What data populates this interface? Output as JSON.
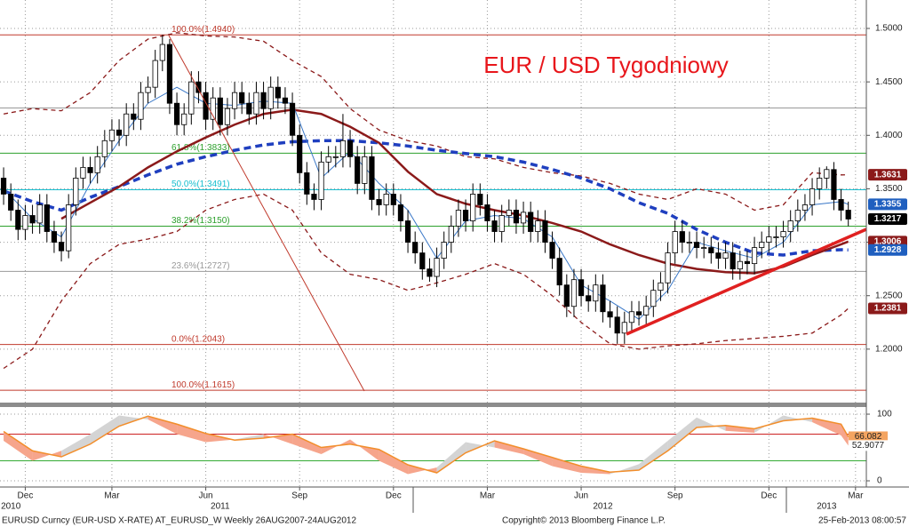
{
  "chart_data": [
    {
      "type": "candlestick",
      "title": "EUR / USD Tygodniowy",
      "categories": [
        null,
        null,
        null,
        "Dec",
        null,
        null,
        null,
        null,
        null,
        null,
        null,
        null,
        null,
        null,
        null,
        "Mar",
        null,
        null,
        null,
        null,
        null,
        null,
        null,
        null,
        null,
        null,
        null,
        null,
        "Jun",
        null,
        null,
        null,
        null,
        null,
        null,
        null,
        null,
        null,
        null,
        null,
        null,
        "Sep",
        null,
        null,
        null,
        null,
        null,
        null,
        null,
        null,
        null,
        null,
        null,
        null,
        "Dec",
        null,
        null,
        null,
        null,
        null,
        null,
        null,
        null,
        null,
        null,
        null,
        null,
        "Mar",
        null,
        null,
        null,
        null,
        null,
        null,
        null,
        null,
        null,
        null,
        null,
        null,
        "Jun",
        null,
        null,
        null,
        null,
        null,
        null,
        null,
        null,
        null,
        null,
        null,
        null,
        "Sep",
        null,
        null,
        null,
        null,
        null,
        null,
        null,
        null,
        null,
        null,
        null,
        null,
        "Dec",
        null,
        null,
        null,
        null,
        null,
        null,
        null,
        null,
        null,
        null,
        null,
        "Mar",
        null
      ],
      "year_labels": [
        {
          "value": 1,
          "label": "2010"
        },
        {
          "value": 30,
          "label": "2011"
        },
        {
          "value": 83,
          "label": "2012"
        },
        {
          "value": 114,
          "label": "2013"
        }
      ],
      "open": [
        1.36,
        1.345,
        1.33,
        1.312,
        1.325,
        1.318,
        1.335,
        1.31,
        1.3,
        1.292,
        1.335,
        1.36,
        1.37,
        1.365,
        1.38,
        1.395,
        1.405,
        1.4,
        1.42,
        1.415,
        1.44,
        1.445,
        1.47,
        1.485,
        1.43,
        1.41,
        1.42,
        1.45,
        1.44,
        1.415,
        1.435,
        1.41,
        1.425,
        1.44,
        1.43,
        1.42,
        1.44,
        1.425,
        1.445,
        1.435,
        1.43,
        1.4,
        1.365,
        1.345,
        1.34,
        1.375,
        1.38,
        1.38,
        1.395,
        1.38,
        1.355,
        1.38,
        1.34,
        1.335,
        1.345,
        1.335,
        1.32,
        1.3,
        1.29,
        1.275,
        1.268,
        1.285,
        1.3,
        1.315,
        1.33,
        1.32,
        1.345,
        1.335,
        1.32,
        1.31,
        1.325,
        1.33,
        1.318,
        1.328,
        1.31,
        1.32,
        1.3,
        1.285,
        1.26,
        1.24,
        1.265,
        1.25,
        1.245,
        1.26,
        1.235,
        1.23,
        1.215,
        1.225,
        1.235,
        1.232,
        1.24,
        1.255,
        1.262,
        1.29,
        1.31,
        1.3,
        1.3,
        1.295,
        1.295,
        1.29,
        1.285,
        1.29,
        1.275,
        1.282,
        1.28,
        1.295,
        1.3,
        1.305,
        1.305,
        1.31,
        1.32,
        1.33,
        1.335,
        1.35,
        1.36,
        1.368,
        1.34,
        1.33,
        null,
        null
      ],
      "high": [
        1.37,
        1.355,
        1.34,
        1.335,
        1.335,
        1.345,
        1.345,
        1.32,
        1.31,
        1.345,
        1.37,
        1.38,
        1.38,
        1.39,
        1.405,
        1.415,
        1.415,
        1.43,
        1.43,
        1.45,
        1.455,
        1.48,
        1.494,
        1.49,
        1.44,
        1.43,
        1.46,
        1.46,
        1.45,
        1.445,
        1.445,
        1.435,
        1.45,
        1.45,
        1.44,
        1.45,
        1.45,
        1.455,
        1.455,
        1.445,
        1.44,
        1.41,
        1.375,
        1.355,
        1.385,
        1.39,
        1.39,
        1.42,
        1.405,
        1.39,
        1.39,
        1.39,
        1.35,
        1.355,
        1.355,
        1.345,
        1.33,
        1.31,
        1.3,
        1.285,
        1.295,
        1.31,
        1.325,
        1.34,
        1.34,
        1.355,
        1.355,
        1.345,
        1.33,
        1.335,
        1.34,
        1.34,
        1.338,
        1.338,
        1.33,
        1.33,
        1.31,
        1.295,
        1.27,
        1.275,
        1.275,
        1.26,
        1.27,
        1.27,
        1.245,
        1.24,
        1.235,
        1.245,
        1.245,
        1.25,
        1.265,
        1.272,
        1.3,
        1.32,
        1.32,
        1.31,
        1.31,
        1.305,
        1.305,
        1.3,
        1.3,
        1.3,
        1.292,
        1.292,
        1.305,
        1.31,
        1.315,
        1.315,
        1.32,
        1.33,
        1.34,
        1.345,
        1.36,
        1.37,
        1.371,
        1.375,
        1.35,
        1.338,
        null,
        null
      ],
      "low": [
        1.335,
        1.32,
        1.302,
        1.302,
        1.308,
        1.308,
        1.3,
        1.29,
        1.282,
        1.285,
        1.325,
        1.35,
        1.355,
        1.355,
        1.37,
        1.385,
        1.39,
        1.39,
        1.405,
        1.405,
        1.43,
        1.435,
        1.46,
        1.42,
        1.4,
        1.4,
        1.41,
        1.43,
        1.405,
        1.405,
        1.4,
        1.4,
        1.415,
        1.42,
        1.41,
        1.41,
        1.415,
        1.415,
        1.425,
        1.42,
        1.39,
        1.355,
        1.335,
        1.33,
        1.33,
        1.365,
        1.37,
        1.37,
        1.37,
        1.345,
        1.345,
        1.33,
        1.325,
        1.325,
        1.325,
        1.31,
        1.29,
        1.28,
        1.265,
        1.263,
        1.258,
        1.275,
        1.29,
        1.305,
        1.31,
        1.31,
        1.325,
        1.31,
        1.3,
        1.3,
        1.315,
        1.308,
        1.308,
        1.3,
        1.3,
        1.29,
        1.275,
        1.25,
        1.23,
        1.23,
        1.24,
        1.235,
        1.235,
        1.225,
        1.22,
        1.205,
        1.205,
        1.215,
        1.222,
        1.222,
        1.23,
        1.245,
        1.252,
        1.28,
        1.29,
        1.29,
        1.285,
        1.285,
        1.28,
        1.275,
        1.275,
        1.265,
        1.265,
        1.27,
        1.27,
        1.285,
        1.29,
        1.295,
        1.295,
        1.3,
        1.31,
        1.32,
        1.325,
        1.34,
        1.35,
        1.33,
        1.32,
        1.315,
        null,
        null
      ],
      "close": [
        1.345,
        1.33,
        1.312,
        1.325,
        1.318,
        1.335,
        1.31,
        1.3,
        1.292,
        1.335,
        1.36,
        1.37,
        1.365,
        1.38,
        1.395,
        1.405,
        1.4,
        1.42,
        1.415,
        1.44,
        1.445,
        1.47,
        1.485,
        1.43,
        1.41,
        1.42,
        1.45,
        1.44,
        1.415,
        1.435,
        1.41,
        1.425,
        1.44,
        1.43,
        1.42,
        1.44,
        1.425,
        1.445,
        1.435,
        1.43,
        1.4,
        1.365,
        1.345,
        1.34,
        1.375,
        1.38,
        1.38,
        1.395,
        1.38,
        1.355,
        1.38,
        1.34,
        1.335,
        1.345,
        1.335,
        1.32,
        1.3,
        1.29,
        1.275,
        1.268,
        1.285,
        1.3,
        1.315,
        1.33,
        1.32,
        1.345,
        1.335,
        1.32,
        1.31,
        1.325,
        1.33,
        1.318,
        1.328,
        1.31,
        1.32,
        1.3,
        1.285,
        1.26,
        1.24,
        1.265,
        1.25,
        1.245,
        1.26,
        1.235,
        1.23,
        1.215,
        1.225,
        1.235,
        1.232,
        1.24,
        1.255,
        1.262,
        1.29,
        1.31,
        1.3,
        1.3,
        1.295,
        1.295,
        1.29,
        1.285,
        1.29,
        1.275,
        1.282,
        1.28,
        1.295,
        1.3,
        1.305,
        1.305,
        1.31,
        1.32,
        1.33,
        1.335,
        1.35,
        1.36,
        1.368,
        1.34,
        1.33,
        1.3217,
        null,
        null
      ],
      "up_color": "#ffffff",
      "down_color": "#000000",
      "overlay_x": [
        0,
        4,
        8,
        12,
        16,
        20,
        24,
        28,
        32,
        36,
        40,
        44,
        48,
        52,
        56,
        60,
        64,
        68,
        72,
        76,
        80,
        84,
        88,
        92,
        96,
        100,
        104,
        108,
        112,
        116,
        117
      ],
      "overlays": [
        {
          "color": "#8b1a1a",
          "style": "dashed",
          "values": [
            1.42,
            1.425,
            1.423,
            1.44,
            1.47,
            1.49,
            1.496,
            1.493,
            1.492,
            1.488,
            1.47,
            1.455,
            1.425,
            1.405,
            1.395,
            1.39,
            1.38,
            1.378,
            1.37,
            1.365,
            1.362,
            1.355,
            1.345,
            1.34,
            1.35,
            1.345,
            1.33,
            1.335,
            1.365,
            1.363,
            1.3631
          ]
        },
        {
          "color": "#8b1a1a",
          "style": "dashed",
          "values": [
            1.182,
            1.2,
            1.245,
            1.28,
            1.298,
            1.303,
            1.31,
            1.33,
            1.34,
            1.345,
            1.33,
            1.29,
            1.27,
            1.265,
            1.255,
            1.262,
            1.27,
            1.28,
            1.27,
            1.25,
            1.225,
            1.205,
            1.2,
            1.203,
            1.205,
            1.208,
            1.21,
            1.212,
            1.215,
            1.232,
            1.2381
          ]
        },
        {
          "color": "#1f3fbf",
          "style": "thick-dashed",
          "values": [
            1.348,
            1.338,
            1.33,
            1.342,
            1.352,
            1.363,
            1.373,
            1.38,
            1.386,
            1.391,
            1.394,
            1.395,
            1.395,
            1.393,
            1.39,
            1.386,
            1.383,
            1.38,
            1.375,
            1.368,
            1.36,
            1.35,
            1.337,
            1.327,
            1.312,
            1.3,
            1.29,
            1.288,
            1.292,
            1.293,
            1.2928
          ]
        },
        {
          "color": "#8b1a1a",
          "style": "thick",
          "values": [
            null,
            null,
            1.322,
            1.337,
            1.352,
            1.37,
            1.385,
            1.398,
            1.41,
            1.42,
            1.424,
            1.42,
            1.408,
            1.393,
            1.366,
            1.345,
            1.336,
            1.33,
            1.325,
            1.318,
            1.31,
            1.298,
            1.288,
            1.28,
            1.275,
            1.272,
            1.271,
            1.277,
            1.288,
            1.298,
            1.3006
          ]
        },
        {
          "color": "#3a78c8",
          "style": "thin",
          "values": [
            1.35,
            1.322,
            1.305,
            1.355,
            1.395,
            1.43,
            1.445,
            1.43,
            1.428,
            1.432,
            1.43,
            1.36,
            1.385,
            1.355,
            1.33,
            1.285,
            1.32,
            1.325,
            1.322,
            1.305,
            1.26,
            1.245,
            1.228,
            1.255,
            1.3,
            1.292,
            1.285,
            1.3,
            1.335,
            1.338,
            1.3355
          ]
        }
      ],
      "fib_levels": [
        {
          "value": 1.494,
          "label": "100.0%(1.4940)",
          "color": "#c0392b"
        },
        {
          "value": 1.4256,
          "color": "#999999"
        },
        {
          "value": 1.3833,
          "label": "61.8%(1.3833)",
          "color": "#2ca02c"
        },
        {
          "value": 1.3491,
          "label": "50.0%(1.3491)",
          "color": "#17becf"
        },
        {
          "value": 1.315,
          "label": "38.2%(1.3150)",
          "color": "#2ca02c"
        },
        {
          "value": 1.2727,
          "label": "23.6%(1.2727)",
          "color": "#999999"
        },
        {
          "value": 1.2043,
          "label": "0.0%(1.2043)",
          "color": "#c0392b"
        },
        {
          "value": 1.1615,
          "label": "100.0%(1.1615)",
          "color": "#c0392b"
        }
      ],
      "price_tags": [
        {
          "value": 1.3631,
          "color": "#8b1a1a"
        },
        {
          "value": 1.3355,
          "color": "#1f5fbf"
        },
        {
          "value": 1.3217,
          "color": "#000000"
        },
        {
          "value": 1.3006,
          "color": "#8b1a1a"
        },
        {
          "value": 1.2928,
          "color": "#1f5fbf"
        },
        {
          "value": 1.2381,
          "color": "#8b1a1a"
        }
      ],
      "ylim": [
        1.15,
        1.5266
      ],
      "yticks": [
        {
          "value": 1.2,
          "label": "1.2000"
        },
        {
          "value": 1.25,
          "label": "1.2500"
        },
        {
          "value": 1.3,
          "label": "1.3000"
        },
        {
          "value": 1.35,
          "label": "1.3500"
        },
        {
          "value": 1.4,
          "label": "1.4000"
        },
        {
          "value": 1.45,
          "label": "1.4500"
        },
        {
          "value": 1.5,
          "label": "1.5000"
        }
      ],
      "grid": true
    },
    {
      "type": "stochastic",
      "x": [
        0,
        4,
        8,
        12,
        16,
        20,
        24,
        28,
        32,
        36,
        40,
        44,
        48,
        52,
        56,
        60,
        64,
        68,
        72,
        76,
        80,
        84,
        88,
        92,
        96,
        100,
        104,
        108,
        112,
        116,
        117
      ],
      "series": [
        {
          "color": "#bbbbbb",
          "values": [
            60,
            30,
            45,
            70,
            98,
            92,
            70,
            58,
            62,
            70,
            55,
            40,
            62,
            30,
            10,
            20,
            58,
            50,
            40,
            22,
            12,
            10,
            25,
            60,
            95,
            75,
            72,
            98,
            88,
            68,
            52.9077
          ]
        },
        {
          "color": "#f28e2b",
          "values": [
            74,
            45,
            36,
            55,
            82,
            97,
            85,
            71,
            61,
            64,
            70,
            50,
            55,
            47,
            24,
            12,
            42,
            60,
            48,
            35,
            22,
            13,
            16,
            45,
            80,
            83,
            78,
            90,
            94,
            85,
            66.082
          ]
        }
      ],
      "fill_up": "#d4d4d4",
      "fill_down": "#f6a58c",
      "levels": [
        {
          "value": 70,
          "color": "#cc2222"
        },
        {
          "value": 30,
          "color": "#33aa33"
        }
      ],
      "tags": [
        {
          "value": 66.082,
          "color": "#f4a460"
        },
        {
          "value": 52.9077,
          "color": "#ffffff"
        }
      ],
      "ylim": [
        -9.3,
        110.7
      ],
      "yticks": [
        0,
        100
      ],
      "grid": true
    }
  ],
  "footer": {
    "left": "EURUSD Curncy (EUR-USD X-RATE) AT_EURUSD_W  Weekly 26AUG2007-24AUG2012",
    "center": "Copyright© 2013 Bloomberg Finance L.P.",
    "right": "25-Feb-2013 08:00:57"
  }
}
